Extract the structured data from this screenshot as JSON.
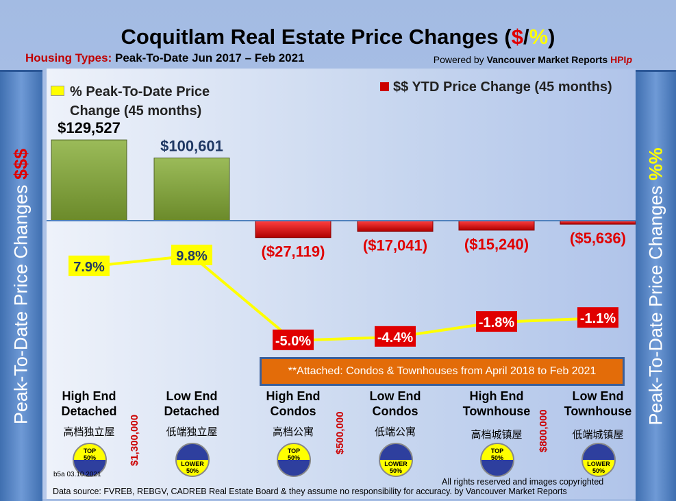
{
  "header": {
    "title_main": "Coquitlam Real Estate Price Changes (",
    "title_dollar": "$",
    "title_slash": "/",
    "title_pct": "%",
    "title_close": ")",
    "subtitle_label": "Housing Types:",
    "subtitle_period": "Peak-To-Date Jun 2017 – Feb 2021",
    "powered_prefix": "Powered by ",
    "powered_brand": "Vancouver Market Reports ",
    "powered_hpi": "HPI",
    "powered_p": "p"
  },
  "left_axis": {
    "text": "Peak-To-Date Price Changes ",
    "symbol": "$$$"
  },
  "right_axis": {
    "text": "Peak-To-Date  Price  Changes ",
    "symbol": "%%"
  },
  "note": "**Attached: Condos & Townhouses from April 2018 to Feb 2021",
  "thresholds": [
    "$1,300,000",
    "$500,000",
    "$800,000"
  ],
  "categories_cn": [
    "高档独立屋",
    "低端独立屋",
    "高档公寓",
    "低端公寓",
    "高档城镇屋",
    "低端城镇屋"
  ],
  "badges": [
    {
      "top": "TOP",
      "pct": "50%"
    },
    {
      "top": "LOWER",
      "pct": "50%"
    },
    {
      "top": "TOP",
      "pct": "50%"
    },
    {
      "top": "LOWER",
      "pct": "50%"
    },
    {
      "top": "TOP",
      "pct": "50%"
    },
    {
      "top": "LOWER",
      "pct": "50%"
    }
  ],
  "footer": {
    "version": "b5a 03.10.2021",
    "rights": "All rights reserved and  images copyrighted",
    "source": "Data source: FVREB, REBGV, CADREB Real Estate Board & they assume no responsibility for accuracy. by Vancouver Market Reports"
  },
  "colors": {
    "pos_bar": "#7a9a35",
    "neg_bar": "#e02020",
    "line": "#ffff00",
    "axis": "#4f81bd"
  },
  "chart_data": {
    "type": "bar+line",
    "categories": [
      "High End Detached",
      "Low End Detached",
      "High End Condos",
      "Low End Condos",
      "High End Townhouse",
      "Low End Townhouse"
    ],
    "series": [
      {
        "name": "$$ YTD Price Change (45 months)",
        "type": "bar",
        "values": [
          129527,
          100601,
          -27119,
          -17041,
          -15240,
          -5636
        ],
        "labels": [
          "$129,527",
          "$100,601",
          "($27,119)",
          "($17,041)",
          "($15,240)",
          "($5,636)"
        ]
      },
      {
        "name": "% Peak-To-Date Price Change (45 months)",
        "type": "line",
        "values": [
          7.9,
          9.8,
          -5.0,
          -4.4,
          -1.8,
          -1.1
        ],
        "labels": [
          "7.9%",
          "9.8%",
          "-5.0%",
          "-4.4%",
          "-1.8%",
          "-1.1%"
        ]
      }
    ],
    "legend_bar": "$$ YTD Price Change (45 months)",
    "legend_line_1": "% Peak-To-Date Price",
    "legend_line_2": "Change (45 months)"
  }
}
